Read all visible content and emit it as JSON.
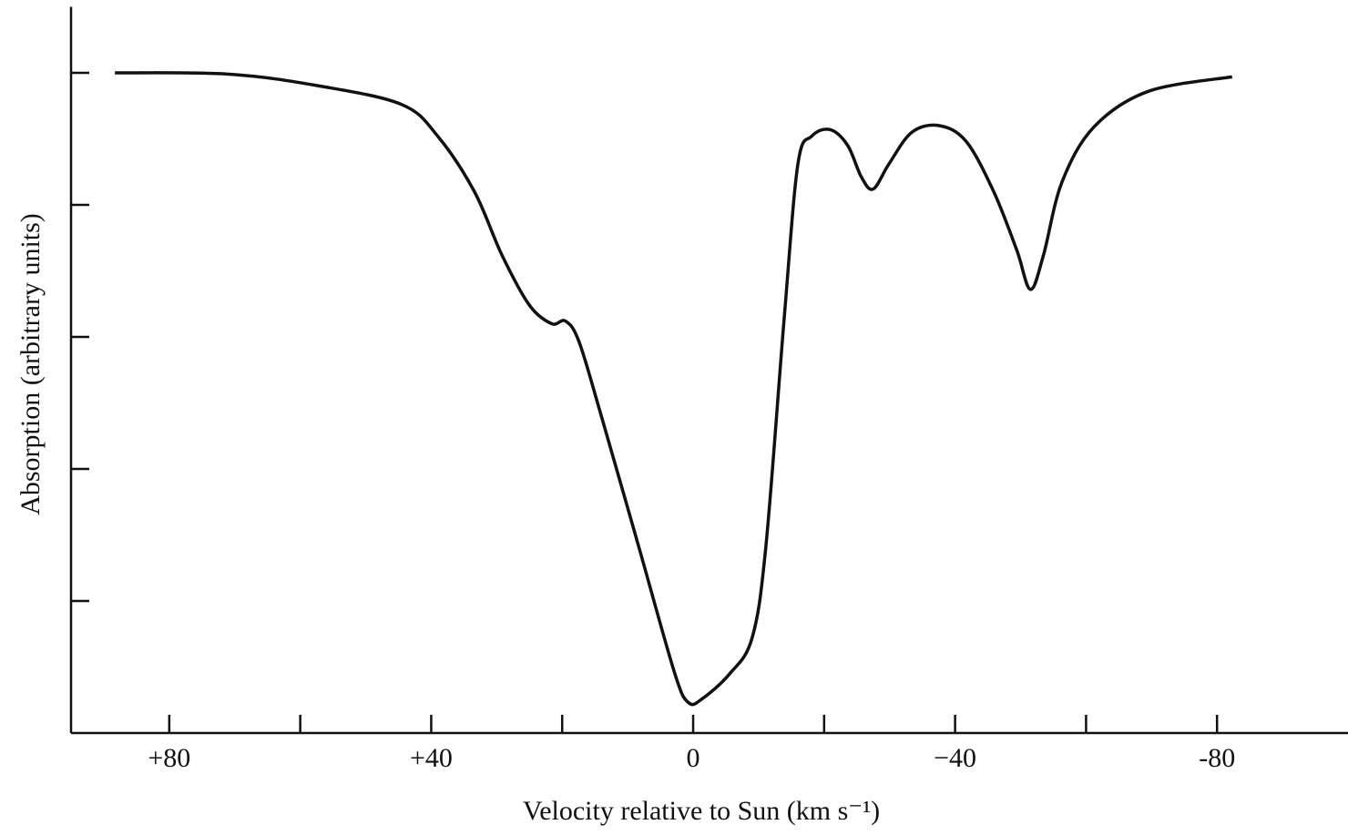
{
  "chart_data": {
    "type": "line",
    "xlabel": "Velocity relative to Sun (km s⁻¹)",
    "ylabel": "Absorption (arbitrary units)",
    "xlim": [
      95,
      -100
    ],
    "ylim": [
      0,
      5.5
    ],
    "xticks": [
      {
        "value": 80,
        "label": "+80"
      },
      {
        "value": 40,
        "label": "+40"
      },
      0,
      {
        "value": -40,
        "label": "−40"
      },
      {
        "value": -80,
        "label": "-80"
      }
    ],
    "xminorticks": [
      60,
      20,
      -20,
      -60
    ],
    "yticks": [
      1,
      2,
      3,
      4,
      5
    ],
    "ytick_labels": false,
    "color": "#111111",
    "x": [
      88.3,
      70.9,
      57,
      44.5,
      39,
      33.4,
      29.2,
      25,
      21.6,
      19.5,
      17.4,
      13.9,
      8.3,
      2.8,
      0.7,
      -1.4,
      -5.6,
      -9.0,
      -11.1,
      -13.9,
      -16.0,
      -18.1,
      -20.9,
      -23.6,
      -25.7,
      -27.5,
      -29.9,
      -33.4,
      -37.6,
      -41.7,
      -45.9,
      -49.4,
      -51.5,
      -53.5,
      -56.3,
      -61.2,
      -69.5,
      -82.3
    ],
    "values": [
      5.0,
      4.99,
      4.9,
      4.76,
      4.52,
      4.1,
      3.62,
      3.24,
      3.1,
      3.12,
      2.96,
      2.38,
      1.41,
      0.45,
      0.23,
      0.26,
      0.45,
      0.72,
      1.41,
      3.14,
      4.31,
      4.52,
      4.57,
      4.45,
      4.21,
      4.12,
      4.31,
      4.55,
      4.6,
      4.48,
      4.1,
      3.66,
      3.36,
      3.62,
      4.17,
      4.59,
      4.86,
      4.97
    ]
  }
}
